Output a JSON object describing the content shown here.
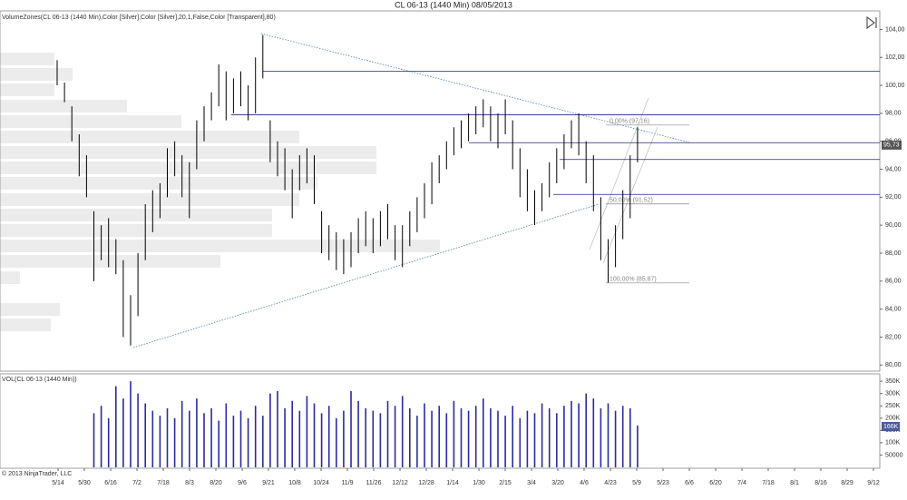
{
  "chart_data": [
    {
      "type": "ohlc",
      "title": "CL 06-13 (1440 Min)  08/05/2013",
      "indicator_label": "VolumeZones(CL 06-13 (1440 Min),Color [Silver],Color [Silver],20,1,False,Color [Transparent],80)",
      "color": "#000000",
      "level_color": "#1f2a7a",
      "ylim": [
        79.5,
        105
      ],
      "yticks": [
        {
          "value": 80,
          "label": "80,00"
        },
        {
          "value": 82,
          "label": "82,00"
        },
        {
          "value": 84,
          "label": "84,00"
        },
        {
          "value": 86,
          "label": "86,00"
        },
        {
          "value": 88,
          "label": "88,00"
        },
        {
          "value": 90,
          "label": "90,00"
        },
        {
          "value": 92,
          "label": "92,00"
        },
        {
          "value": 94,
          "label": "94,00"
        },
        {
          "value": 96,
          "label": "96,00"
        },
        {
          "value": 98,
          "label": "98,00"
        },
        {
          "value": 100,
          "label": "100,00"
        },
        {
          "value": 102,
          "label": "102,00"
        },
        {
          "value": 104,
          "label": "104,00"
        }
      ],
      "last_price": {
        "value": 95.73,
        "label": "95,73"
      },
      "levels": [
        101,
        97.9,
        95.9,
        94.7,
        92.2
      ],
      "fib_levels": [
        {
          "value": 97.16,
          "label": "0,00% (97,16)"
        },
        {
          "value": 91.52,
          "label": "50,00% (91,52)"
        },
        {
          "value": 85.87,
          "label": "100,00% (85,87)"
        }
      ],
      "high": [
        101.8,
        100.2,
        98.5,
        96.5,
        95.0,
        91.0,
        90.0,
        90.5,
        89.0,
        87.5,
        85.0,
        88.0,
        91.5,
        92.5,
        93.0,
        95.5,
        96.0,
        95.0,
        94.5,
        97.5,
        98.5,
        99.5,
        101.5,
        101.0,
        100.5,
        101.0,
        100.0,
        102.0,
        103.6,
        97.5,
        96.0,
        95.5,
        94.0,
        95.0,
        95.5,
        95.0,
        91.0,
        90.0,
        89.5,
        89.0,
        89.5,
        90.5,
        91.0,
        90.5,
        91.0,
        91.5,
        90.0,
        90.0,
        91.0,
        92.0,
        93.0,
        94.5,
        95.0,
        96.0,
        97.0,
        97.5,
        98.0,
        98.5,
        99.0,
        98.5,
        98.0,
        99.0,
        97.5,
        95.5,
        94.0,
        92.5,
        93.0,
        94.5,
        95.5,
        96.5,
        97.5,
        98.0,
        96.0,
        95.0,
        92.0,
        89.0,
        90.0,
        92.5,
        95.0,
        97.0
      ],
      "low": [
        100.0,
        98.8,
        96.0,
        93.5,
        92.0,
        86.0,
        87.5,
        87.0,
        86.5,
        82.0,
        81.4,
        83.5,
        87.5,
        89.5,
        90.5,
        92.0,
        93.5,
        92.0,
        90.5,
        94.0,
        96.0,
        97.5,
        98.5,
        97.5,
        98.0,
        98.5,
        97.5,
        98.0,
        100.5,
        94.5,
        93.5,
        92.5,
        90.5,
        92.5,
        93.0,
        91.5,
        88.0,
        87.5,
        86.8,
        86.5,
        87.0,
        88.0,
        88.5,
        88.0,
        88.5,
        89.0,
        87.5,
        87.0,
        88.5,
        89.5,
        90.5,
        91.5,
        93.0,
        94.0,
        95.0,
        95.5,
        96.0,
        96.5,
        97.0,
        96.0,
        95.5,
        96.5,
        94.0,
        92.0,
        91.0,
        90.0,
        91.0,
        92.0,
        93.0,
        94.0,
        95.5,
        95.0,
        93.0,
        91.0,
        87.5,
        85.9,
        87.0,
        89.0,
        90.5,
        94.5
      ],
      "x_labels": [
        "5/14",
        "5/30",
        "6/16",
        "7/2",
        "7/18",
        "8/3",
        "8/20",
        "9/6",
        "9/21",
        "10/8",
        "10/24",
        "11/9",
        "11/26",
        "12/12",
        "12/28",
        "1/14",
        "1/30",
        "2/15",
        "3/4",
        "3/20",
        "4/6",
        "4/23",
        "5/9",
        "5/23",
        "6/6",
        "6/20",
        "7/4",
        "7/18",
        "8/1",
        "8/16",
        "8/29",
        "9/12"
      ]
    },
    {
      "type": "bar",
      "label": "VOL(CL 06-13 (1440 Min))",
      "copyright": "© 2013 NinjaTrader, LLC",
      "color": "#2b2ba0",
      "ylim": [
        0,
        380000
      ],
      "yticks": [
        {
          "value": 50000,
          "label": "50000"
        },
        {
          "value": 100000,
          "label": "100K"
        },
        {
          "value": 150000,
          "label": "150K"
        },
        {
          "value": 200000,
          "label": "200K"
        },
        {
          "value": 250000,
          "label": "250K"
        },
        {
          "value": 300000,
          "label": "300K"
        },
        {
          "value": 350000,
          "label": "350K"
        }
      ],
      "last_volume": {
        "value": 166000,
        "label": "166K"
      },
      "values": [
        null,
        null,
        null,
        null,
        null,
        220000,
        250000,
        200000,
        330000,
        280000,
        350000,
        300000,
        260000,
        230000,
        210000,
        240000,
        200000,
        270000,
        230000,
        280000,
        220000,
        240000,
        190000,
        260000,
        210000,
        230000,
        200000,
        250000,
        210000,
        300000,
        310000,
        240000,
        270000,
        230000,
        290000,
        260000,
        220000,
        250000,
        200000,
        230000,
        310000,
        270000,
        240000,
        230000,
        220000,
        270000,
        250000,
        290000,
        240000,
        210000,
        260000,
        230000,
        250000,
        220000,
        270000,
        240000,
        230000,
        250000,
        280000,
        240000,
        230000,
        210000,
        250000,
        200000,
        230000,
        220000,
        260000,
        240000,
        220000,
        250000,
        270000,
        260000,
        300000,
        280000,
        240000,
        260000,
        230000,
        250000,
        240000,
        170000
      ]
    }
  ]
}
